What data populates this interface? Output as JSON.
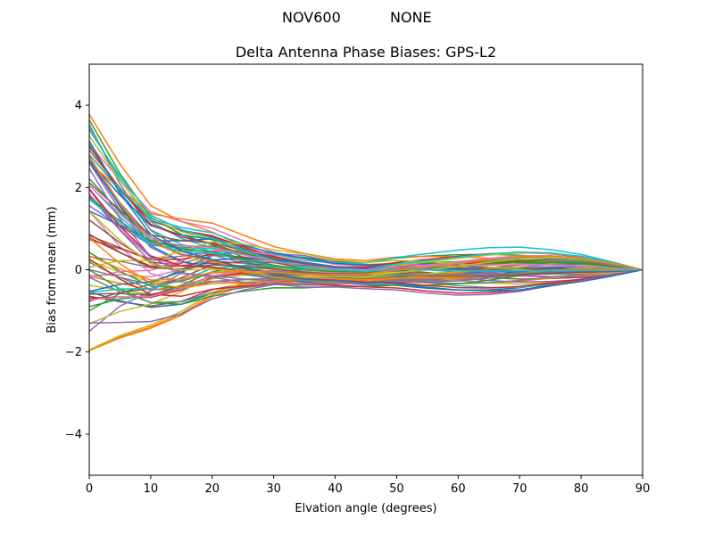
{
  "figure": {
    "suptitle_left": "NOV600",
    "suptitle_right": "NONE"
  },
  "chart_data": {
    "type": "line",
    "title": "Delta Antenna Phase Biases: GPS-L2",
    "xlabel": "Elvation angle (degrees)",
    "ylabel": "Bias from mean (mm)",
    "xlim": [
      0,
      90
    ],
    "ylim": [
      -5,
      5
    ],
    "xticks": [
      0,
      10,
      20,
      30,
      40,
      50,
      60,
      70,
      80,
      90
    ],
    "yticks": [
      -4,
      -2,
      0,
      2,
      4
    ],
    "ytick_labels": [
      "−4",
      "−2",
      "0",
      "2",
      "4"
    ],
    "grid": false,
    "legend": "none",
    "x": [
      0,
      5,
      10,
      15,
      20,
      25,
      30,
      35,
      40,
      45,
      50,
      55,
      60,
      65,
      70,
      75,
      80,
      85,
      90
    ],
    "series_count": 72,
    "envelope": {
      "upper": [
        3.8,
        2.8,
        1.9,
        1.6,
        1.35,
        0.95,
        0.6,
        0.4,
        0.3,
        0.3,
        0.45,
        0.55,
        0.63,
        0.67,
        0.65,
        0.55,
        0.4,
        0.2,
        0.0
      ],
      "lower": [
        -2.0,
        -1.85,
        -1.7,
        -1.45,
        -1.0,
        -0.7,
        -0.5,
        -0.45,
        -0.45,
        -0.5,
        -0.55,
        -0.65,
        -0.72,
        -0.72,
        -0.65,
        -0.5,
        -0.35,
        -0.18,
        0.0
      ]
    },
    "colors": [
      "#1f77b4",
      "#ff7f0e",
      "#2ca02c",
      "#d62728",
      "#9467bd",
      "#8c564b",
      "#e377c2",
      "#7f7f7f",
      "#bcbd22",
      "#17becf"
    ]
  }
}
